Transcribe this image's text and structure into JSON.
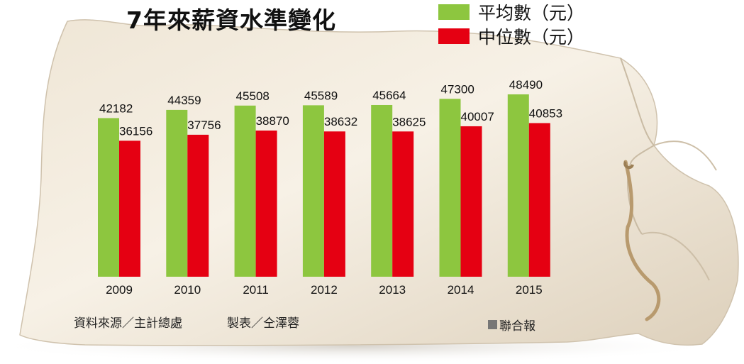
{
  "chart_data": {
    "type": "bar",
    "title": "7年來薪資水準變化",
    "categories": [
      "2009",
      "2010",
      "2011",
      "2012",
      "2013",
      "2014",
      "2015"
    ],
    "series": [
      {
        "name": "平均數（元）",
        "color": "#8dc63f",
        "values": [
          42182,
          44359,
          45508,
          45589,
          45664,
          47300,
          48490
        ]
      },
      {
        "name": "中位數（元）",
        "color": "#e50012",
        "values": [
          36156,
          37756,
          38870,
          38632,
          38625,
          40007,
          40853
        ]
      }
    ],
    "legend_placement": "top-right",
    "grid": false
  },
  "source": "資料來源／主計總處",
  "credit": "製表／仝澤蓉",
  "publisher": "聯合報"
}
